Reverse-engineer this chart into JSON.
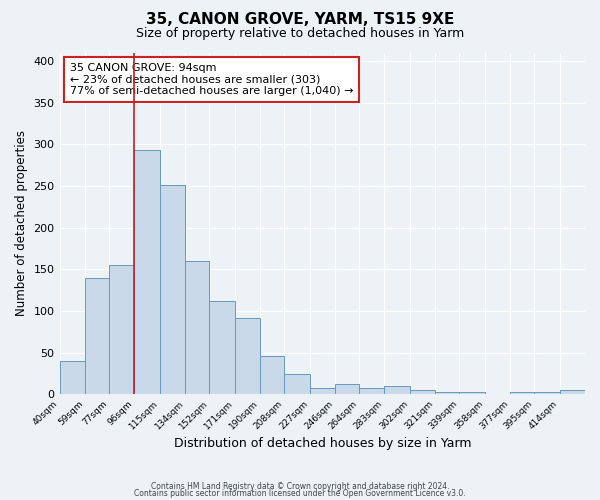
{
  "title": "35, CANON GROVE, YARM, TS15 9XE",
  "subtitle": "Size of property relative to detached houses in Yarm",
  "xlabel": "Distribution of detached houses by size in Yarm",
  "ylabel": "Number of detached properties",
  "bar_labels": [
    "40sqm",
    "59sqm",
    "77sqm",
    "96sqm",
    "115sqm",
    "134sqm",
    "152sqm",
    "171sqm",
    "190sqm",
    "208sqm",
    "227sqm",
    "246sqm",
    "264sqm",
    "283sqm",
    "302sqm",
    "321sqm",
    "339sqm",
    "358sqm",
    "377sqm",
    "395sqm",
    "414sqm"
  ],
  "bar_values": [
    40,
    140,
    155,
    293,
    251,
    160,
    112,
    92,
    46,
    25,
    8,
    13,
    8,
    10,
    5,
    3,
    3,
    0,
    3,
    3,
    5
  ],
  "bin_edges": [
    40,
    59,
    77,
    96,
    115,
    134,
    152,
    171,
    190,
    208,
    227,
    246,
    264,
    283,
    302,
    321,
    339,
    358,
    377,
    395,
    414,
    433
  ],
  "bar_color": "#c9d9ea",
  "bar_edge_color": "#6699bb",
  "property_line_x": 96,
  "property_line_color": "#bb2222",
  "annotation_text": "35 CANON GROVE: 94sqm\n← 23% of detached houses are smaller (303)\n77% of semi-detached houses are larger (1,040) →",
  "annotation_box_edge_color": "#cc2222",
  "ylim": [
    0,
    410
  ],
  "yticks": [
    0,
    50,
    100,
    150,
    200,
    250,
    300,
    350,
    400
  ],
  "footer_line1": "Contains HM Land Registry data © Crown copyright and database right 2024.",
  "footer_line2": "Contains public sector information licensed under the Open Government Licence v3.0.",
  "background_color": "#edf2f7",
  "grid_color": "#dde5ef",
  "title_fontsize": 11,
  "subtitle_fontsize": 9
}
